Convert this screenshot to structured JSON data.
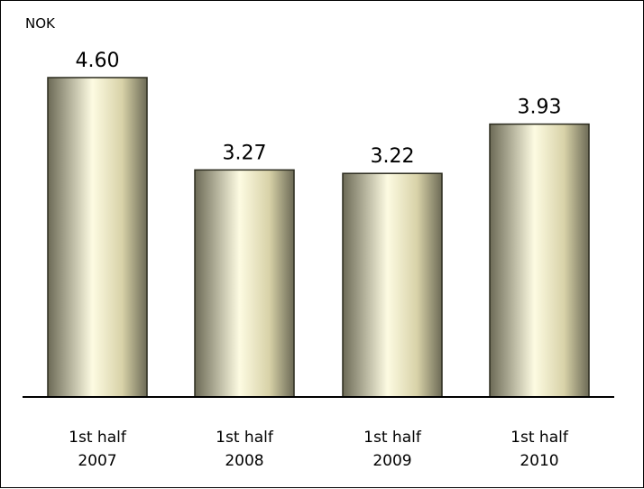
{
  "chart_data": {
    "type": "bar",
    "unit_label": "NOK",
    "categories": [
      [
        "1st half",
        "2007"
      ],
      [
        "1st half",
        "2008"
      ],
      [
        "1st half",
        "2009"
      ],
      [
        "1st half",
        "2010"
      ]
    ],
    "values": [
      4.6,
      3.27,
      3.22,
      3.93
    ],
    "value_labels": [
      "4.60",
      "3.27",
      "3.22",
      "3.93"
    ],
    "ylim": [
      0,
      5.0
    ],
    "grid": false,
    "legend": "none",
    "colors": {
      "bar_edge": "#2b2b1e",
      "bar_light": "#fdfbe2",
      "bar_mid": "#d8d2a8",
      "bar_dark": "#6c6a56",
      "axis": "#000000"
    }
  }
}
